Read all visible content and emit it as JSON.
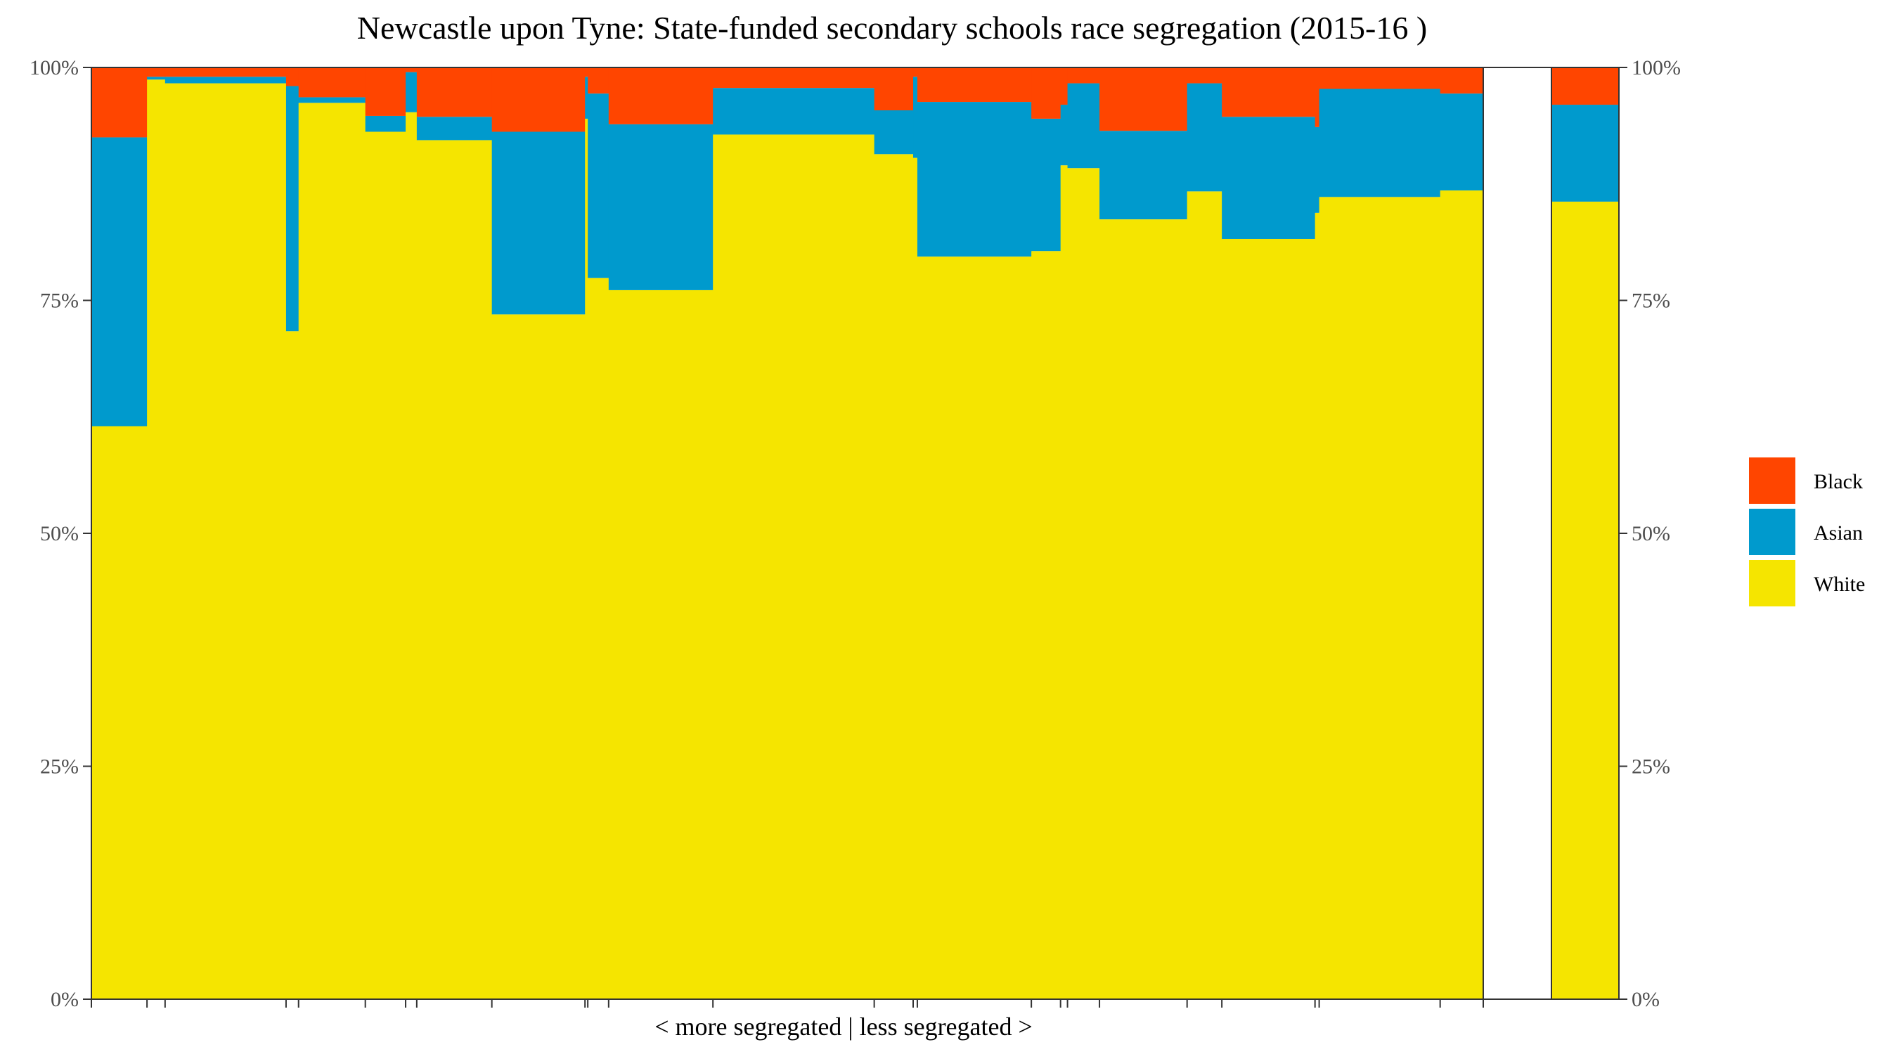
{
  "chart_data": {
    "type": "bar",
    "title": "Newcastle upon Tyne: State-funded secondary schools race segregation (2015-16 )",
    "xlabel": "< more segregated | less segregated >",
    "ylabel": "",
    "ylim": [
      0,
      100
    ],
    "y_ticks": [
      "0%",
      "25%",
      "50%",
      "75%",
      "100%"
    ],
    "legend": {
      "position": "right",
      "entries": [
        "Black",
        "Asian",
        "White"
      ]
    },
    "colors": {
      "Black": "#ff4500",
      "Asian": "#009acd",
      "White": "#f5e500"
    },
    "grid": false,
    "series_order": [
      "White",
      "Asian",
      "Black"
    ],
    "schools": [
      {
        "width": 0.04,
        "White": 61.5,
        "Asian": 31.0,
        "Black": 7.5
      },
      {
        "width": 0.013,
        "White": 98.7,
        "Asian": 0.3,
        "Black": 1.0
      },
      {
        "width": 0.087,
        "White": 98.3,
        "Asian": 0.7,
        "Black": 1.0
      },
      {
        "width": 0.009,
        "White": 71.7,
        "Asian": 26.3,
        "Black": 2.0
      },
      {
        "width": 0.048,
        "White": 96.2,
        "Asian": 0.6,
        "Black": 3.2
      },
      {
        "width": 0.029,
        "White": 93.1,
        "Asian": 1.7,
        "Black": 5.2
      },
      {
        "width": 0.008,
        "White": 95.2,
        "Asian": 4.3,
        "Black": 0.5
      },
      {
        "width": 0.054,
        "White": 92.2,
        "Asian": 2.5,
        "Black": 5.3
      },
      {
        "width": 0.067,
        "White": 73.5,
        "Asian": 19.6,
        "Black": 6.9
      },
      {
        "width": 0.002,
        "White": 94.5,
        "Asian": 4.5,
        "Black": 1.0
      },
      {
        "width": 0.015,
        "White": 77.4,
        "Asian": 19.8,
        "Black": 2.8
      },
      {
        "width": 0.075,
        "White": 76.1,
        "Asian": 17.8,
        "Black": 6.1
      },
      {
        "width": 0.116,
        "White": 92.8,
        "Asian": 5.0,
        "Black": 2.2
      },
      {
        "width": 0.028,
        "White": 90.7,
        "Asian": 4.7,
        "Black": 4.6
      },
      {
        "width": 0.003,
        "White": 90.3,
        "Asian": 8.7,
        "Black": 1.0
      },
      {
        "width": 0.082,
        "White": 79.7,
        "Asian": 16.6,
        "Black": 3.7
      },
      {
        "width": 0.021,
        "White": 80.3,
        "Asian": 14.2,
        "Black": 5.5
      },
      {
        "width": 0.005,
        "White": 89.5,
        "Asian": 6.5,
        "Black": 4.0
      },
      {
        "width": 0.023,
        "White": 89.2,
        "Asian": 9.1,
        "Black": 1.7
      },
      {
        "width": 0.063,
        "White": 83.7,
        "Asian": 9.5,
        "Black": 6.8
      },
      {
        "width": 0.025,
        "White": 86.7,
        "Asian": 11.6,
        "Black": 1.7
      },
      {
        "width": 0.067,
        "White": 81.6,
        "Asian": 13.1,
        "Black": 5.3
      },
      {
        "width": 0.003,
        "White": 84.4,
        "Asian": 9.2,
        "Black": 6.4
      },
      {
        "width": 0.087,
        "White": 86.1,
        "Asian": 11.6,
        "Black": 2.3
      },
      {
        "width": 0.031,
        "White": 86.8,
        "Asian": 10.4,
        "Black": 2.8
      }
    ],
    "overall": {
      "White": 85.6,
      "Asian": 10.4,
      "Black": 4.0
    }
  }
}
